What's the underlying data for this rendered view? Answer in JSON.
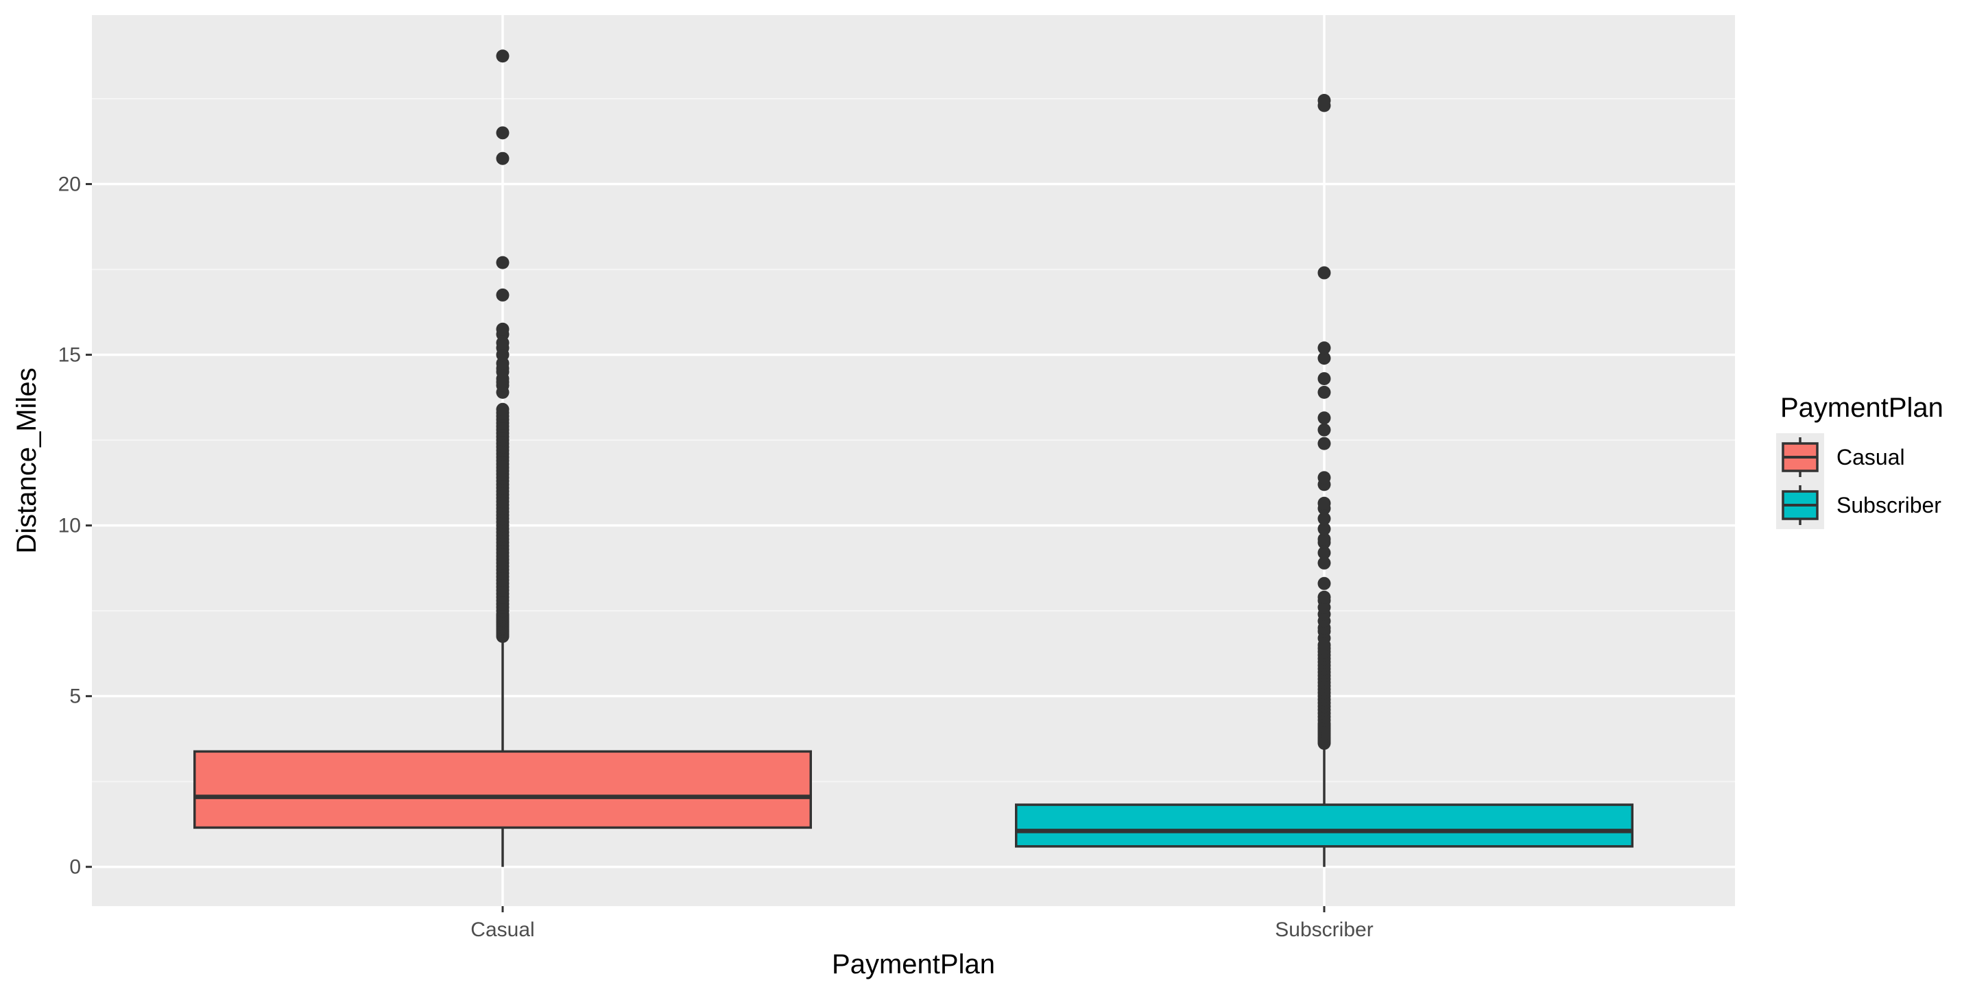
{
  "chart_data": {
    "type": "boxplot",
    "title": "",
    "xlabel": "PaymentPlan",
    "ylabel": "Distance_Miles",
    "ylim": [
      -1.15,
      24.95
    ],
    "yticks": [
      0,
      5,
      10,
      15,
      20
    ],
    "categories": [
      "Casual",
      "Subscriber"
    ],
    "grid": true,
    "legend": {
      "title": "PaymentPlan",
      "placement": "right"
    },
    "colors": {
      "panel_background": "#ebebeb",
      "grid_major": "#ffffff",
      "grid_minor": "#f5f5f5",
      "box_outline": "#333333",
      "outlier": "#333333"
    },
    "series": [
      {
        "name": "Casual",
        "color": "#f8766d",
        "whisker_low": 0.0,
        "q1": 1.15,
        "median": 2.05,
        "q3": 3.38,
        "whisker_high": 6.7,
        "outliers": [
          6.75,
          6.8,
          6.85,
          6.9,
          6.95,
          7.0,
          7.05,
          7.1,
          7.15,
          7.2,
          7.25,
          7.3,
          7.35,
          7.4,
          7.5,
          7.6,
          7.7,
          7.8,
          7.9,
          8.0,
          8.1,
          8.2,
          8.3,
          8.4,
          8.5,
          8.6,
          8.7,
          8.8,
          8.9,
          9.0,
          9.1,
          9.2,
          9.3,
          9.4,
          9.5,
          9.6,
          9.7,
          9.8,
          9.9,
          10.0,
          10.1,
          10.2,
          10.3,
          10.4,
          10.5,
          10.6,
          10.7,
          10.8,
          10.9,
          11.0,
          11.1,
          11.2,
          11.3,
          11.4,
          11.5,
          11.6,
          11.7,
          11.8,
          11.9,
          12.0,
          12.1,
          12.2,
          12.3,
          12.4,
          12.5,
          12.6,
          12.7,
          12.8,
          12.9,
          13.0,
          13.1,
          13.2,
          13.3,
          13.4,
          13.9,
          14.1,
          14.2,
          14.3,
          14.5,
          14.6,
          14.75,
          15.0,
          15.2,
          15.35,
          15.6,
          15.75,
          16.75,
          17.7,
          20.75,
          21.5,
          23.75
        ]
      },
      {
        "name": "Subscriber",
        "color": "#00bfc4",
        "whisker_low": 0.0,
        "q1": 0.6,
        "median": 1.05,
        "q3": 1.82,
        "whisker_high": 3.6,
        "outliers": [
          3.62,
          3.66,
          3.7,
          3.75,
          3.8,
          3.85,
          3.9,
          3.95,
          4.0,
          4.05,
          4.1,
          4.15,
          4.2,
          4.3,
          4.4,
          4.5,
          4.6,
          4.7,
          4.8,
          4.9,
          5.0,
          5.1,
          5.2,
          5.3,
          5.4,
          5.5,
          5.6,
          5.7,
          5.8,
          5.9,
          6.0,
          6.1,
          6.2,
          6.3,
          6.4,
          6.5,
          6.7,
          6.9,
          7.0,
          7.2,
          7.4,
          7.6,
          7.8,
          7.9,
          8.3,
          8.9,
          9.2,
          9.5,
          9.6,
          9.9,
          10.2,
          10.5,
          10.65,
          11.2,
          11.4,
          12.4,
          12.8,
          13.15,
          13.9,
          14.3,
          14.9,
          15.2,
          17.4,
          22.3,
          22.45
        ]
      }
    ]
  }
}
